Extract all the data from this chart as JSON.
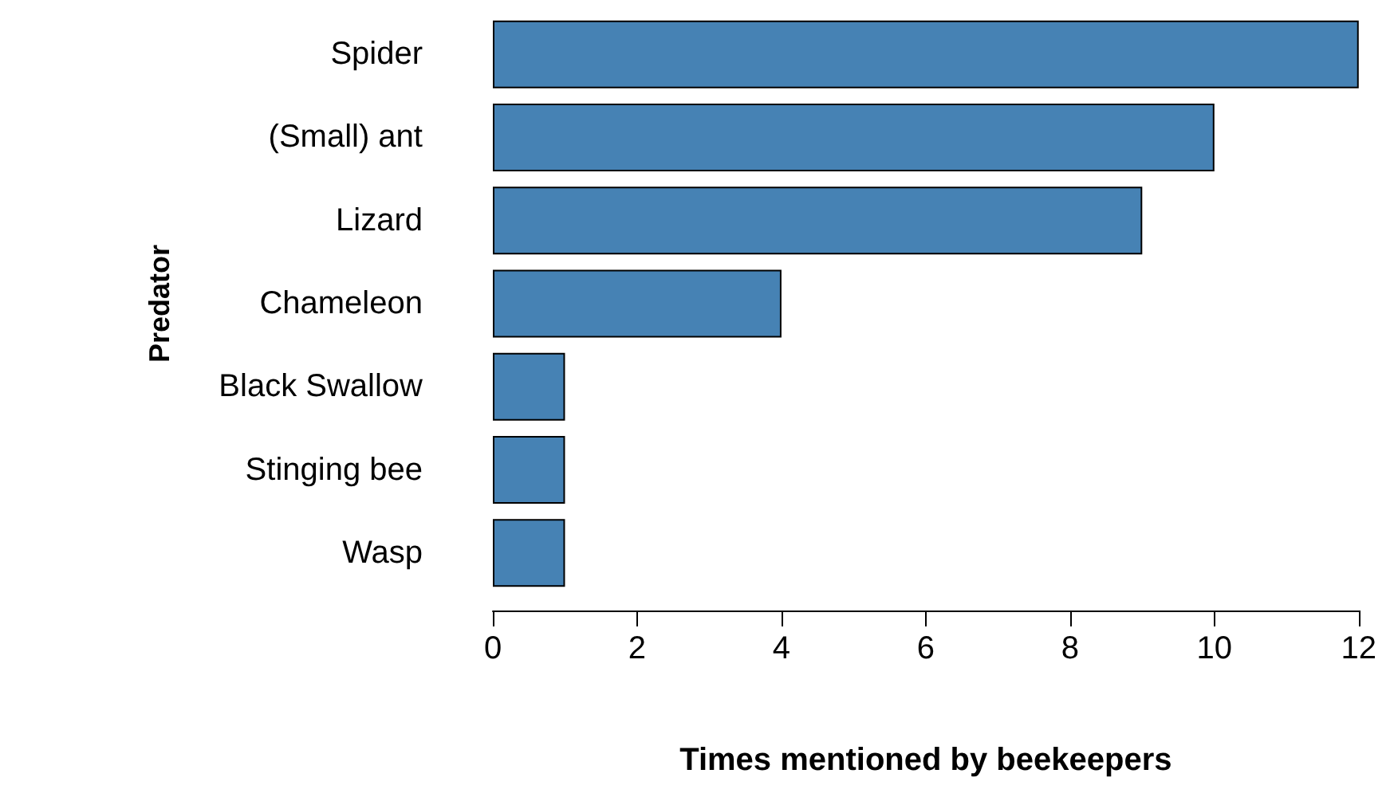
{
  "chart_data": {
    "type": "bar",
    "orientation": "horizontal",
    "xlabel": "Times mentioned by beekeepers",
    "ylabel": "Predator",
    "categories": [
      "Spider",
      "(Small) ant",
      "Lizard",
      "Chameleon",
      "Black Swallow",
      "Stinging bee",
      "Wasp"
    ],
    "values": [
      12,
      10,
      9,
      4,
      1,
      1,
      1
    ],
    "color": "#4682b4",
    "xlim": [
      0,
      12
    ],
    "xticks": [
      0,
      2,
      4,
      6,
      8,
      10,
      12
    ],
    "grid": false
  }
}
